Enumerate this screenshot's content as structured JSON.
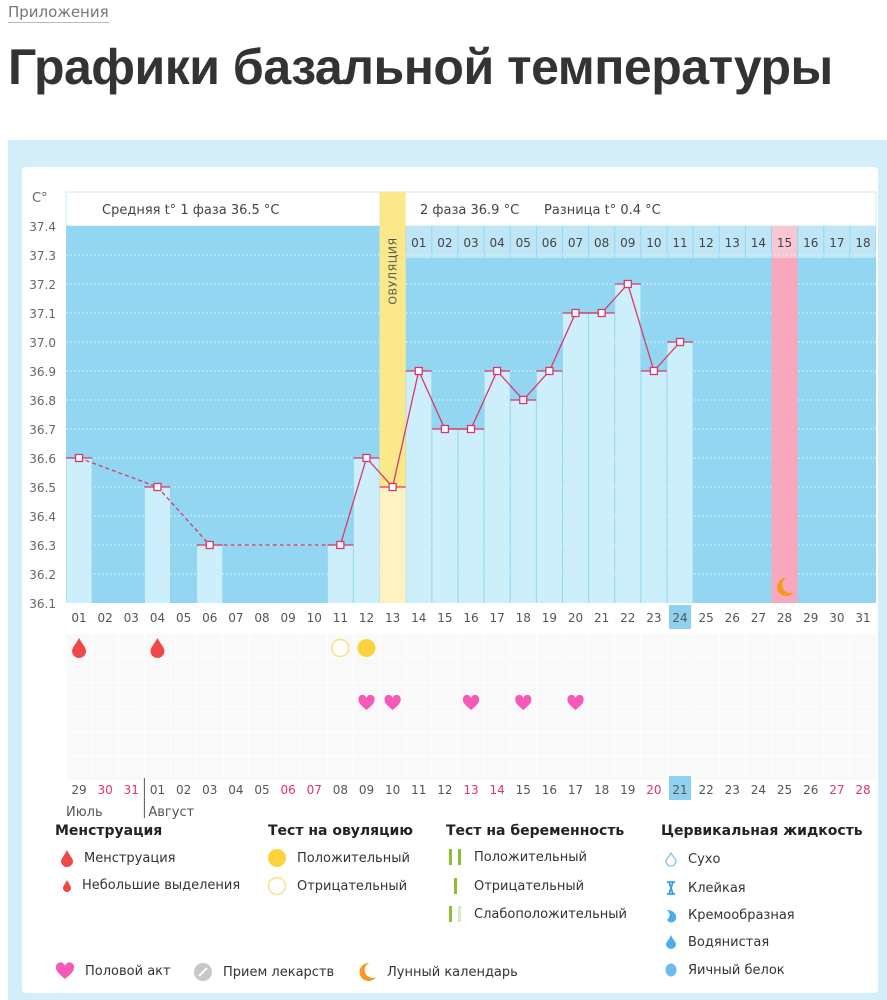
{
  "breadcrumb": "Приложения",
  "page_title": "Графики базальной температуры",
  "chart_data": {
    "type": "bar",
    "y_unit_label": "C°",
    "ylim": [
      36.1,
      37.4
    ],
    "y_ticks": [
      "37.4",
      "37.3",
      "37.2",
      "37.1",
      "37.0",
      "36.9",
      "36.8",
      "36.7",
      "36.6",
      "36.5",
      "36.4",
      "36.3",
      "36.2",
      "36.1"
    ],
    "phase1_label": "Средняя t° 1 фаза 36.5 °C",
    "phase2_label": "2 фаза 36.9 °C",
    "diff_label": "Разница t° 0.4 °C",
    "ovulation_label": "ОВУЛЯЦИЯ",
    "ovulation_day": 13,
    "lunar_day": 28,
    "today_day": 24,
    "cycle_days": [
      "01",
      "02",
      "03",
      "04",
      "05",
      "06",
      "07",
      "08",
      "09",
      "10",
      "11",
      "12",
      "13",
      "14",
      "15",
      "16",
      "17",
      "18",
      "19",
      "20",
      "21",
      "22",
      "23",
      "24",
      "25",
      "26",
      "27",
      "28",
      "29",
      "30",
      "31"
    ],
    "phase2_days": [
      "01",
      "02",
      "03",
      "04",
      "05",
      "06",
      "07",
      "08",
      "09",
      "10",
      "11",
      "12",
      "13",
      "14",
      "15",
      "16",
      "17",
      "18"
    ],
    "temperatures": [
      {
        "day": 1,
        "t": 36.6
      },
      {
        "day": 4,
        "t": 36.5
      },
      {
        "day": 6,
        "t": 36.3
      },
      {
        "day": 11,
        "t": 36.3
      },
      {
        "day": 12,
        "t": 36.6
      },
      {
        "day": 13,
        "t": 36.5
      },
      {
        "day": 14,
        "t": 36.9
      },
      {
        "day": 15,
        "t": 36.7
      },
      {
        "day": 16,
        "t": 36.7
      },
      {
        "day": 17,
        "t": 36.9
      },
      {
        "day": 18,
        "t": 36.8
      },
      {
        "day": 19,
        "t": 36.9
      },
      {
        "day": 20,
        "t": 37.1
      },
      {
        "day": 21,
        "t": 37.1
      },
      {
        "day": 22,
        "t": 37.2
      },
      {
        "day": 23,
        "t": 36.9
      },
      {
        "day": 24,
        "t": 37.0
      }
    ],
    "menstruation_days": [
      1,
      4
    ],
    "ovulation_test": [
      {
        "day": 11,
        "result": "negative"
      },
      {
        "day": 12,
        "result": "positive"
      }
    ],
    "intercourse_days": [
      12,
      13,
      16,
      18,
      20
    ],
    "calendar_dates": [
      "29",
      "30",
      "31",
      "01",
      "02",
      "03",
      "04",
      "05",
      "06",
      "07",
      "08",
      "09",
      "10",
      "11",
      "12",
      "13",
      "14",
      "15",
      "16",
      "17",
      "18",
      "19",
      "20",
      "21",
      "22",
      "23",
      "24",
      "25",
      "26",
      "27",
      "28"
    ],
    "weekend_indices": [
      1,
      2,
      8,
      9,
      15,
      16,
      22,
      29,
      30
    ],
    "months": [
      "Июль",
      "Август"
    ],
    "colors": {
      "plot_bg": "#92d6f2",
      "bar": "#cdeefb",
      "line": "#d8386a",
      "ovulation": "#fbe88a",
      "lunar": "#f7a8bf",
      "weekend": "#e0336b",
      "today": "#8fd2ef"
    }
  },
  "legend": {
    "menstruation": {
      "title": "Менструация",
      "items": [
        "Менструация",
        "Небольшие выделения"
      ]
    },
    "ovulation_test": {
      "title": "Тест на овуляцию",
      "items": [
        "Положительный",
        "Отрицательный"
      ]
    },
    "pregnancy_test": {
      "title": "Тест на беременность",
      "items": [
        "Положительный",
        "Отрицательный",
        "Слабоположительный"
      ]
    },
    "cervical_fluid": {
      "title": "Цервикальная жидкость",
      "items": [
        "Сухо",
        "Клейкая",
        "Кремообразная",
        "Водянистая",
        "Яичный белок"
      ]
    },
    "other": [
      "Половой акт",
      "Прием лекарств",
      "Лунный календарь"
    ]
  }
}
